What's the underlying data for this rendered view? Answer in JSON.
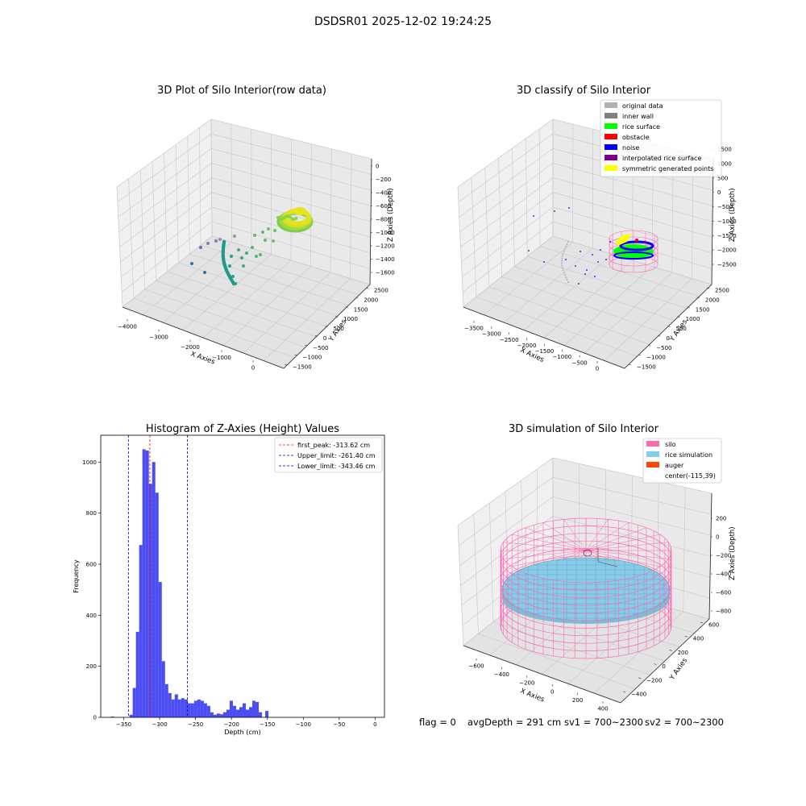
{
  "figure_title": "DSDSR01 2025-12-02 19:24:25",
  "colors": {
    "hist_bar": "#4a4cf6",
    "first_peak_line": "#ff0000",
    "limit_line": "#0000aa",
    "silo": "#ff69b4",
    "rice_sim": "#87cdea",
    "auger": "#ff4500",
    "cls_original": "#b0b0b0",
    "cls_wall": "#808080",
    "cls_rice": "#00ff00",
    "cls_obstacle": "#ff0000",
    "cls_noise": "#0000ff",
    "cls_interp": "#800080",
    "cls_sym": "#ffff00"
  },
  "chart_data": [
    {
      "type": "scatter3d",
      "title": "3D Plot of Silo Interior(row data)",
      "xlabel": "X Axies",
      "ylabel": "Y Axies",
      "zlabel": "Z Axies (Depth)",
      "x_ticks": [
        "−4000",
        "−3000",
        "−2000",
        "−1000",
        "0"
      ],
      "y_ticks": [
        "−1500",
        "−1000",
        "−500",
        "0",
        "500",
        "1000",
        "1500",
        "2000",
        "2500"
      ],
      "z_ticks": [
        "−1600",
        "−1400",
        "−1200",
        "−1000",
        "−800",
        "−600",
        "−400",
        "−200",
        "0"
      ]
    },
    {
      "type": "scatter3d",
      "title": "3D classify of Silo Interior",
      "xlabel": "X Axies",
      "ylabel": "Y Axies",
      "zlabel": "Z Axies (Depth)",
      "x_ticks": [
        "−3500",
        "−3000",
        "−2500",
        "−2000",
        "−1500",
        "−1000",
        "−500",
        "0"
      ],
      "y_ticks": [
        "−1500",
        "−1000",
        "−500",
        "0",
        "500",
        "1000",
        "1500",
        "2000",
        "2500"
      ],
      "z_ticks": [
        "−2500",
        "−2000",
        "−1500",
        "−1000",
        "−500",
        "0",
        "500",
        "1000",
        "1500"
      ],
      "legend": [
        {
          "label": "original data",
          "color": "#b0b0b0"
        },
        {
          "label": "inner wall",
          "color": "#808080"
        },
        {
          "label": "rice surface",
          "color": "#00ff00"
        },
        {
          "label": "obstacle",
          "color": "#ff0000"
        },
        {
          "label": "noise",
          "color": "#0000ff"
        },
        {
          "label": "interpolated rice surface",
          "color": "#800080"
        },
        {
          "label": "symmetric generated points",
          "color": "#ffff00"
        }
      ]
    },
    {
      "type": "bar",
      "title": "Histogram of Z-Axies (Height) Values",
      "xlabel": "Depth (cm)",
      "ylabel": "Frequency",
      "xlim": [
        -382,
        13
      ],
      "ylim": [
        0,
        1105
      ],
      "x_ticks": [
        -350,
        -300,
        -250,
        -200,
        -150,
        -100,
        -50,
        0
      ],
      "x_tick_labels": [
        "−350",
        "−300",
        "−250",
        "−200",
        "−150",
        "−100",
        "−50",
        "0"
      ],
      "y_ticks": [
        0,
        200,
        400,
        600,
        800,
        1000
      ],
      "bin_start": -342,
      "bin_width": 4.5,
      "values": [
        10,
        115,
        335,
        675,
        1050,
        1045,
        915,
        1000,
        880,
        530,
        220,
        130,
        95,
        70,
        90,
        70,
        75,
        70,
        55,
        55,
        65,
        70,
        65,
        55,
        45,
        20,
        10,
        15,
        12,
        20,
        30,
        65,
        45,
        30,
        40,
        55,
        30,
        40,
        65,
        60,
        20,
        0,
        25
      ],
      "outliers": [
        {
          "x": -368,
          "value": 3
        }
      ],
      "vlines": [
        {
          "label": "first_peak: -313.62 cm",
          "x": -313.62,
          "color": "#ff0000"
        },
        {
          "label": "Upper_limit: -261.40 cm",
          "x": -261.4,
          "color": "#0000aa"
        },
        {
          "label": "Lower_limit: -343.46 cm",
          "x": -343.46,
          "color": "#0000aa"
        }
      ],
      "legend_position": "top-right"
    },
    {
      "type": "surface3d",
      "title": "3D simulation of Silo Interior",
      "xlabel": "X Axies",
      "ylabel": "Y Axies",
      "zlabel": "Z Axies (Depth)",
      "x_ticks": [
        "−600",
        "−400",
        "−200",
        "0",
        "200",
        "400"
      ],
      "y_ticks": [
        "−400",
        "−200",
        "0",
        "200",
        "400",
        "600"
      ],
      "z_ticks": [
        "−800",
        "−600",
        "−400",
        "−200",
        "0",
        "200"
      ],
      "legend": [
        {
          "label": "silo",
          "color": "#ff69b4"
        },
        {
          "label": "rice simulation",
          "color": "#87cdea"
        },
        {
          "label": "auger",
          "color": "#ff4500"
        },
        {
          "label": "center(-115,39)",
          "color": ""
        }
      ]
    }
  ],
  "footer": {
    "flag": "flag = 0",
    "avg_depth": "avgDepth = 291 cm",
    "sv1": "sv1 = 700~2300",
    "sv2": "sv2 = 700~2300"
  }
}
